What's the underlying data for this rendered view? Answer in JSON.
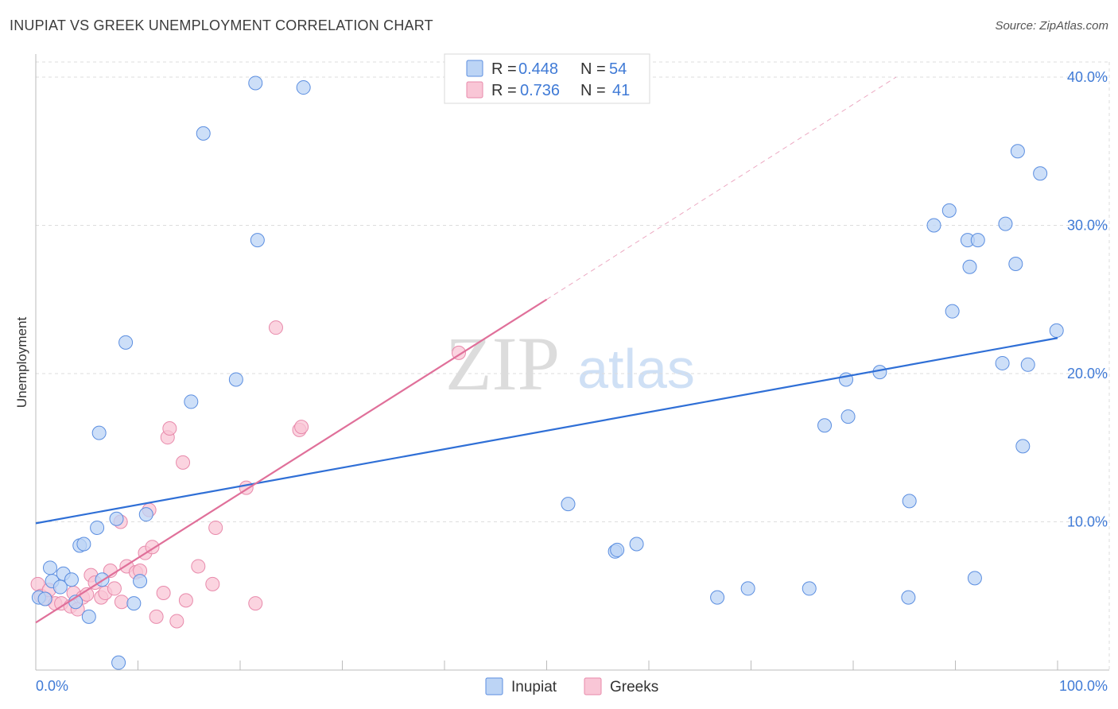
{
  "header": {
    "title": "INUPIAT VS GREEK UNEMPLOYMENT CORRELATION CHART",
    "source": "Source: ZipAtlas.com"
  },
  "watermark": {
    "zip": "ZIP",
    "atlas": "atlas"
  },
  "legend": {
    "r_label": "R =",
    "n_label": "N =",
    "series": [
      {
        "name": "Inupiat",
        "r": "0.448",
        "n": "54"
      },
      {
        "name": "Greeks",
        "r": "0.736",
        "n": "41"
      }
    ]
  },
  "chart_data": {
    "type": "scatter",
    "title": "INUPIAT VS GREEK UNEMPLOYMENT CORRELATION CHART",
    "xlabel": "",
    "ylabel": "Unemployment",
    "xlim": [
      0,
      100
    ],
    "ylim": [
      0,
      41.5
    ],
    "x_tick_labels": [
      "0.0%",
      "100.0%"
    ],
    "y_ticks": [
      10,
      20,
      30,
      40
    ],
    "y_tick_labels": [
      "10.0%",
      "20.0%",
      "30.0%",
      "40.0%"
    ],
    "grid": true,
    "colors": {
      "Inupiat": "#2f6fd6",
      "Greeks": "#e0709a",
      "inupiat_fill": "#bcd4f5",
      "greeks_fill": "#f9c6d6"
    },
    "series": [
      {
        "name": "Inupiat",
        "trend": {
          "x": [
            0,
            100
          ],
          "y": [
            9.9,
            22.4
          ]
        },
        "points": [
          [
            0.3,
            4.9
          ],
          [
            1.4,
            6.9
          ],
          [
            1.6,
            6.0
          ],
          [
            2.4,
            5.6
          ],
          [
            2.7,
            6.5
          ],
          [
            3.5,
            6.1
          ],
          [
            3.9,
            4.6
          ],
          [
            4.3,
            8.4
          ],
          [
            4.7,
            8.5
          ],
          [
            5.2,
            3.6
          ],
          [
            6.0,
            9.6
          ],
          [
            6.2,
            16.0
          ],
          [
            6.5,
            6.1
          ],
          [
            7.9,
            10.2
          ],
          [
            8.1,
            0.5
          ],
          [
            8.8,
            22.1
          ],
          [
            9.6,
            4.5
          ],
          [
            10.2,
            6.0
          ],
          [
            10.8,
            10.5
          ],
          [
            15.2,
            18.1
          ],
          [
            16.4,
            36.2
          ],
          [
            19.6,
            19.6
          ],
          [
            21.5,
            39.6
          ],
          [
            21.7,
            29.0
          ],
          [
            26.2,
            39.3
          ],
          [
            52.1,
            11.2
          ],
          [
            56.7,
            8.0
          ],
          [
            56.9,
            8.1
          ],
          [
            58.8,
            8.5
          ],
          [
            66.7,
            4.9
          ],
          [
            69.7,
            5.5
          ],
          [
            75.7,
            5.5
          ],
          [
            77.2,
            16.5
          ],
          [
            79.3,
            19.6
          ],
          [
            79.5,
            17.1
          ],
          [
            82.6,
            20.1
          ],
          [
            85.5,
            11.4
          ],
          [
            85.4,
            4.9
          ],
          [
            87.9,
            30.0
          ],
          [
            89.4,
            31.0
          ],
          [
            89.7,
            24.2
          ],
          [
            91.2,
            29.0
          ],
          [
            91.4,
            27.2
          ],
          [
            91.9,
            6.2
          ],
          [
            92.2,
            29.0
          ],
          [
            94.6,
            20.7
          ],
          [
            94.9,
            30.1
          ],
          [
            95.9,
            27.4
          ],
          [
            96.1,
            35.0
          ],
          [
            96.6,
            15.1
          ],
          [
            97.1,
            20.6
          ],
          [
            98.3,
            33.5
          ],
          [
            99.9,
            22.9
          ],
          [
            0.9,
            4.8
          ]
        ]
      },
      {
        "name": "Greeks",
        "trend": {
          "x": [
            0,
            50
          ],
          "y": [
            3.2,
            25.0
          ]
        },
        "trend_dashed": {
          "x": [
            50,
            84.2
          ],
          "y": [
            25.0,
            40.0
          ]
        },
        "points": [
          [
            0.2,
            5.8
          ],
          [
            0.5,
            5.0
          ],
          [
            1.0,
            4.8
          ],
          [
            1.3,
            5.4
          ],
          [
            1.9,
            4.5
          ],
          [
            2.5,
            4.5
          ],
          [
            3.4,
            4.3
          ],
          [
            3.7,
            5.2
          ],
          [
            4.1,
            4.1
          ],
          [
            4.6,
            4.9
          ],
          [
            5.0,
            5.1
          ],
          [
            5.4,
            6.4
          ],
          [
            5.8,
            5.9
          ],
          [
            6.4,
            4.9
          ],
          [
            6.8,
            5.2
          ],
          [
            7.3,
            6.7
          ],
          [
            7.7,
            5.5
          ],
          [
            8.3,
            10.0
          ],
          [
            8.4,
            4.6
          ],
          [
            8.9,
            7.0
          ],
          [
            9.8,
            6.6
          ],
          [
            10.2,
            6.7
          ],
          [
            10.7,
            7.9
          ],
          [
            11.1,
            10.8
          ],
          [
            11.4,
            8.3
          ],
          [
            11.8,
            3.6
          ],
          [
            12.5,
            5.2
          ],
          [
            12.9,
            15.7
          ],
          [
            13.1,
            16.3
          ],
          [
            13.8,
            3.3
          ],
          [
            14.4,
            14.0
          ],
          [
            14.7,
            4.7
          ],
          [
            15.9,
            7.0
          ],
          [
            17.3,
            5.8
          ],
          [
            17.6,
            9.6
          ],
          [
            20.6,
            12.3
          ],
          [
            21.5,
            4.5
          ],
          [
            23.5,
            23.1
          ],
          [
            25.8,
            16.2
          ],
          [
            26.0,
            16.4
          ],
          [
            41.4,
            21.4
          ]
        ]
      }
    ]
  }
}
